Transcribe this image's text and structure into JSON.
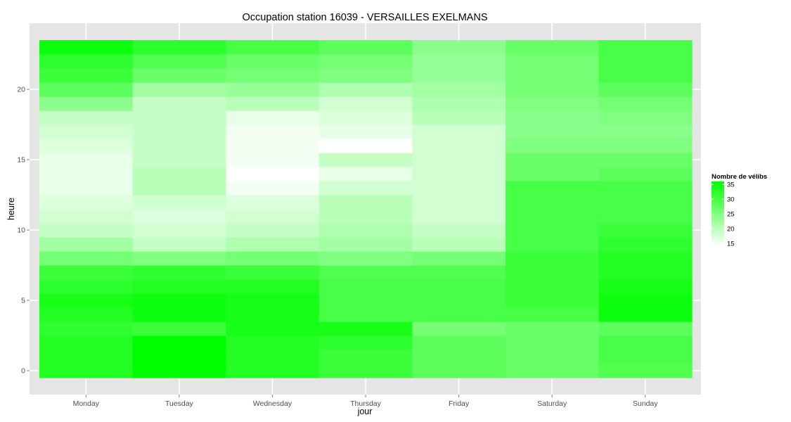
{
  "chart_data": {
    "type": "heatmap",
    "title": "Occupation station 16039 - VERSAILLES EXELMANS",
    "xlabel": "jour",
    "ylabel": "heure",
    "categories": [
      "Monday",
      "Tuesday",
      "Wednesday",
      "Thursday",
      "Friday",
      "Saturday",
      "Sunday"
    ],
    "hours": [
      0,
      1,
      2,
      3,
      4,
      5,
      6,
      7,
      8,
      9,
      10,
      11,
      12,
      13,
      14,
      15,
      16,
      17,
      18,
      19,
      20,
      21,
      22,
      23
    ],
    "y_ticks": [
      0,
      5,
      10,
      15,
      20
    ],
    "ylim": [
      -0.5,
      23.5
    ],
    "grid": true,
    "values": [
      [
        33,
        36,
        33,
        31,
        28,
        27,
        29
      ],
      [
        33,
        36,
        33,
        31,
        28,
        27,
        30
      ],
      [
        33,
        36,
        33,
        32,
        28,
        27,
        30
      ],
      [
        32,
        31,
        34,
        34,
        26,
        27,
        28
      ],
      [
        33,
        35,
        34,
        30,
        30,
        30,
        35
      ],
      [
        34,
        35,
        34,
        30,
        30,
        31,
        35
      ],
      [
        32,
        33,
        33,
        30,
        30,
        31,
        34
      ],
      [
        31,
        32,
        31,
        29,
        29,
        31,
        33
      ],
      [
        26,
        25,
        26,
        25,
        26,
        31,
        33
      ],
      [
        22,
        19,
        21,
        22,
        20,
        30,
        32
      ],
      [
        19,
        18,
        19,
        21,
        19,
        30,
        31
      ],
      [
        18,
        17,
        18,
        20,
        18,
        30,
        30
      ],
      [
        17,
        18,
        17,
        20,
        18,
        30,
        30
      ],
      [
        16,
        20,
        15,
        18,
        18,
        30,
        30
      ],
      [
        16,
        20,
        14,
        16,
        18,
        27,
        28
      ],
      [
        16,
        19,
        15,
        19,
        18,
        27,
        27
      ],
      [
        17,
        19,
        15,
        14,
        18,
        25,
        25
      ],
      [
        18,
        19,
        15,
        16,
        18,
        24,
        24
      ],
      [
        19,
        19,
        16,
        17,
        20,
        24,
        25
      ],
      [
        24,
        19,
        20,
        18,
        21,
        25,
        26
      ],
      [
        28,
        22,
        23,
        21,
        22,
        26,
        28
      ],
      [
        31,
        27,
        26,
        25,
        23,
        26,
        30
      ],
      [
        32,
        29,
        27,
        26,
        23,
        26,
        30
      ],
      [
        35,
        32,
        30,
        28,
        24,
        27,
        30
      ]
    ],
    "legend": {
      "title": "Nombre de vélibs",
      "ticks": [
        35,
        30,
        25,
        20,
        15
      ],
      "range": [
        14,
        36
      ],
      "low_color": "#ffffff",
      "high_color": "#00ff00"
    },
    "panel_bg": "#e5e5e5",
    "grid_color": "#ffffff"
  }
}
